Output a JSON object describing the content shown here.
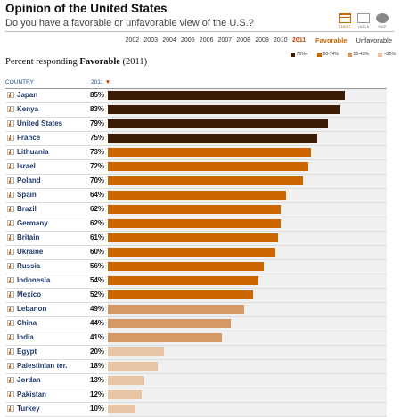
{
  "header": {
    "title": "Opinion of the United States",
    "subtitle": "Do you have a favorable or unfavorable view of the U.S.?"
  },
  "views": [
    {
      "label": "CHART",
      "icon": "chart-icon",
      "active": true
    },
    {
      "label": "TABLE",
      "icon": "table-icon",
      "active": false
    },
    {
      "label": "MAP",
      "icon": "globe-icon",
      "active": false
    }
  ],
  "years": [
    "2002",
    "2003",
    "2004",
    "2005",
    "2006",
    "2007",
    "2008",
    "2009",
    "2010",
    "2011"
  ],
  "selected_year": "2011",
  "toggle": {
    "favorable": "Favorable",
    "unfavorable": "Unfavorable"
  },
  "legend": [
    {
      "label": "75%+",
      "color": "#3d1c06"
    },
    {
      "label": "50-74%",
      "color": "#cc6600"
    },
    {
      "label": "25-49%",
      "color": "#d49a66"
    },
    {
      "label": "<25%",
      "color": "#e6c4a4"
    }
  ],
  "percent_title": {
    "prefix": "Percent responding ",
    "bold": "Favorable",
    "suffix": " (2011)"
  },
  "columns": {
    "country": "COUNTRY",
    "year": "2011",
    "sort_arrow": "▼"
  },
  "chart_data": {
    "type": "bar",
    "title": "Opinion of the United States",
    "subtitle": "Percent responding Favorable (2011)",
    "xlim": [
      0,
      100
    ],
    "categories": [
      "Japan",
      "Kenya",
      "United States",
      "France",
      "Lithuania",
      "Israel",
      "Poland",
      "Spain",
      "Brazil",
      "Germany",
      "Britain",
      "Ukraine",
      "Russia",
      "Indonesia",
      "Mexico",
      "Lebanon",
      "China",
      "India",
      "Egypt",
      "Palestinian ter.",
      "Jordan",
      "Pakistan",
      "Turkey"
    ],
    "values": [
      85,
      83,
      79,
      75,
      73,
      72,
      70,
      64,
      62,
      62,
      61,
      60,
      56,
      54,
      52,
      49,
      44,
      41,
      20,
      18,
      13,
      12,
      10
    ],
    "labels": [
      "85%",
      "83%",
      "79%",
      "75%",
      "73%",
      "72%",
      "70%",
      "64%",
      "62%",
      "62%",
      "61%",
      "60%",
      "56%",
      "54%",
      "52%",
      "49%",
      "44%",
      "41%",
      "20%",
      "18%",
      "13%",
      "12%",
      "10%"
    ]
  }
}
